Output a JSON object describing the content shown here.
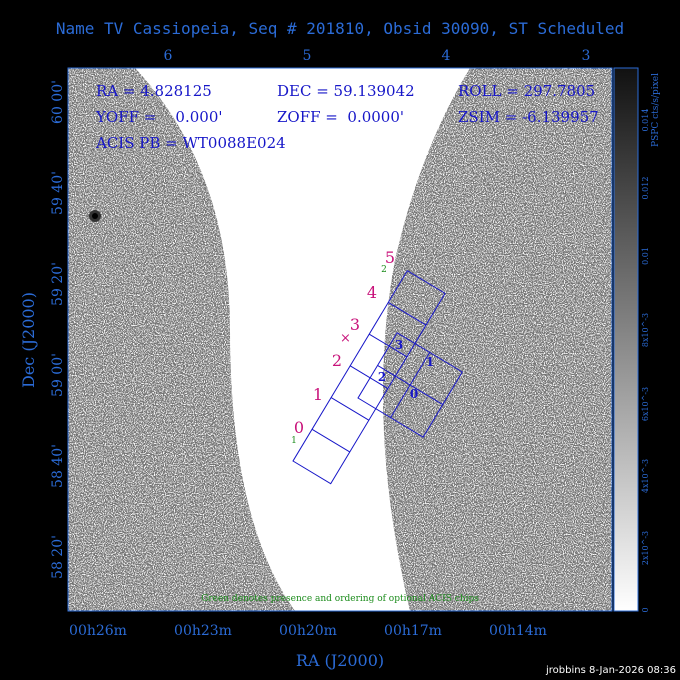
{
  "title": "Name TV Cassiopeia, Seq # 201810, Obsid 30090, ST Scheduled",
  "top_axis_ticks": [
    "6",
    "5",
    "4",
    "3"
  ],
  "left_axis_ticks": [
    "60 00'",
    "59 40'",
    "59 20'",
    "59 00'",
    "58 40'",
    "58 20'"
  ],
  "bottom_axis_ticks": [
    "00h26m",
    "00h23m",
    "00h20m",
    "00h17m",
    "00h14m"
  ],
  "xlabel": "RA (J2000)",
  "ylabel": "Dec (J2000)",
  "info": {
    "ra": "RA = 4.828125",
    "dec": "DEC = 59.139042",
    "roll": "ROLL = 297.7805",
    "yoff": "YOFF =    0.000'",
    "zoff": "ZOFF =  0.0000'",
    "zsim": "ZSIM = -6.139957",
    "acis_pb": "ACIS PB = WT0088E024"
  },
  "acis_s_chips": [
    "0",
    "1",
    "2",
    "3",
    "4",
    "5"
  ],
  "acis_i_chips": [
    "0",
    "1",
    "2",
    "3"
  ],
  "optional_chip_markers": [
    "1",
    "2"
  ],
  "legend_note": "Green denotes presence and ordering of optional ACIS chips",
  "colorbar": {
    "label": "PSPC cts/s/pixel",
    "ticks": [
      "0.014",
      "0.012",
      "0.01",
      "8x10^-3",
      "6x10^-3",
      "4x10^-3",
      "2x10^-3",
      "0"
    ]
  },
  "footer": "jrobbins  8-Jan-2026 08:36",
  "colors": {
    "axis": "#2b6bd6",
    "chips": "#1616c8",
    "chip_labels": "#c8127a",
    "optional": "#1b8c1b"
  }
}
